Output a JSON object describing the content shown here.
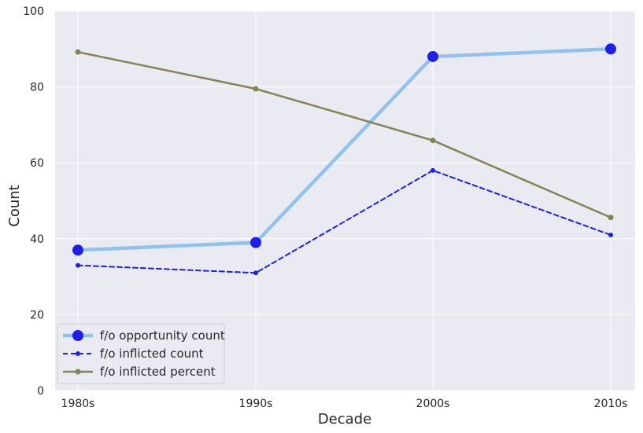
{
  "chart_data": {
    "type": "line",
    "title": "",
    "xlabel": "Decade",
    "ylabel": "Count",
    "categories": [
      "1980s",
      "1990s",
      "2000s",
      "2010s"
    ],
    "ylim": [
      0,
      100
    ],
    "yticks": [
      "0",
      "20",
      "40",
      "60",
      "80",
      "100"
    ],
    "grid": true,
    "legend_position": "lower-left",
    "background_color": "#eaeaf2",
    "series": [
      {
        "name": "f/o opportunity count",
        "values": [
          37,
          39,
          88,
          90
        ],
        "color": "#1f1fe8",
        "line_color": "#91c2ee",
        "style": "solid-thick-large-markers"
      },
      {
        "name": "f/o inflicted count",
        "values": [
          33,
          31,
          58,
          41
        ],
        "color": "#1f1fe8",
        "line_color": "#1f1fe8",
        "style": "dashed-small-markers"
      },
      {
        "name": "f/o inflicted percent",
        "values": [
          89.2,
          79.5,
          65.9,
          45.6
        ],
        "color": "#848456",
        "line_color": "#848456",
        "style": "solid-small-markers"
      }
    ]
  }
}
